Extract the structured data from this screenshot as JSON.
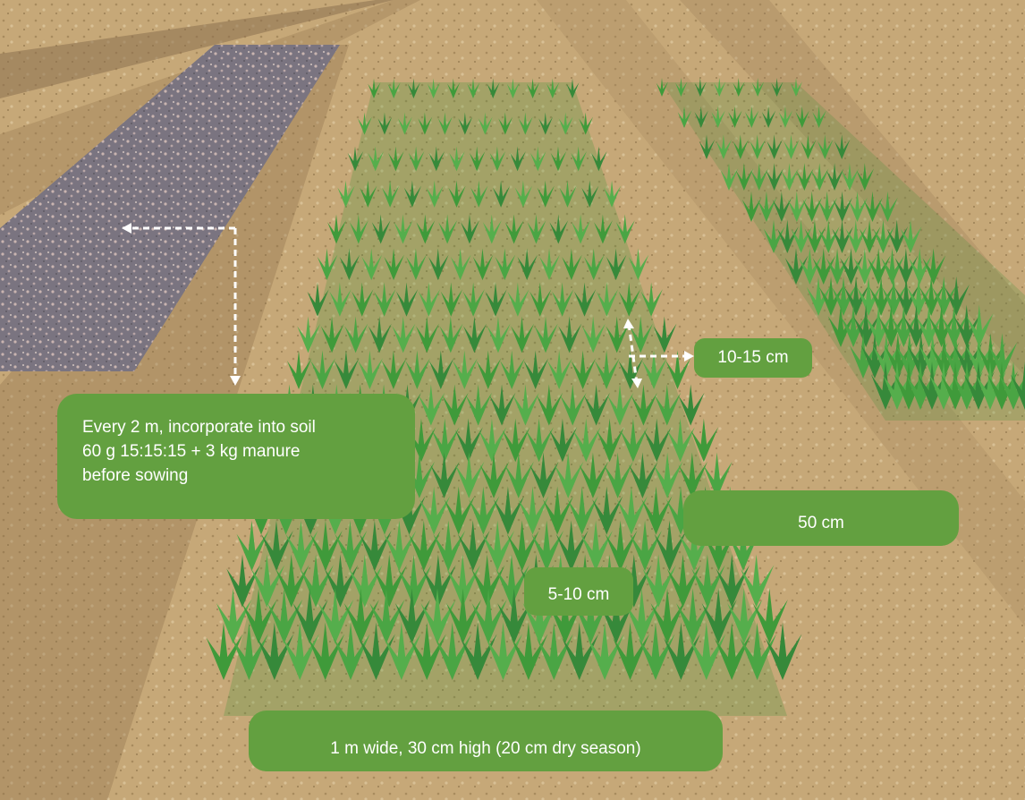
{
  "annotations": {
    "fertilizer_note": {
      "line1": "Every 2 m, incorporate into soil",
      "line2": "60 g 15:15:15 + 3 kg manure",
      "line3": "before sowing"
    },
    "row_spacing_label": "10-15 cm",
    "bed_spacing_label": "50 cm",
    "plant_spacing_label": "5-10 cm",
    "bed_dimensions_label": "1 m wide, 30 cm high  (20 cm dry season)"
  },
  "colors": {
    "label_background": "#63a040",
    "label_text": "#ffffff",
    "plant_green": "#3f9a3a",
    "soil": "#c3a474",
    "amended_bed": "#7c7580"
  }
}
